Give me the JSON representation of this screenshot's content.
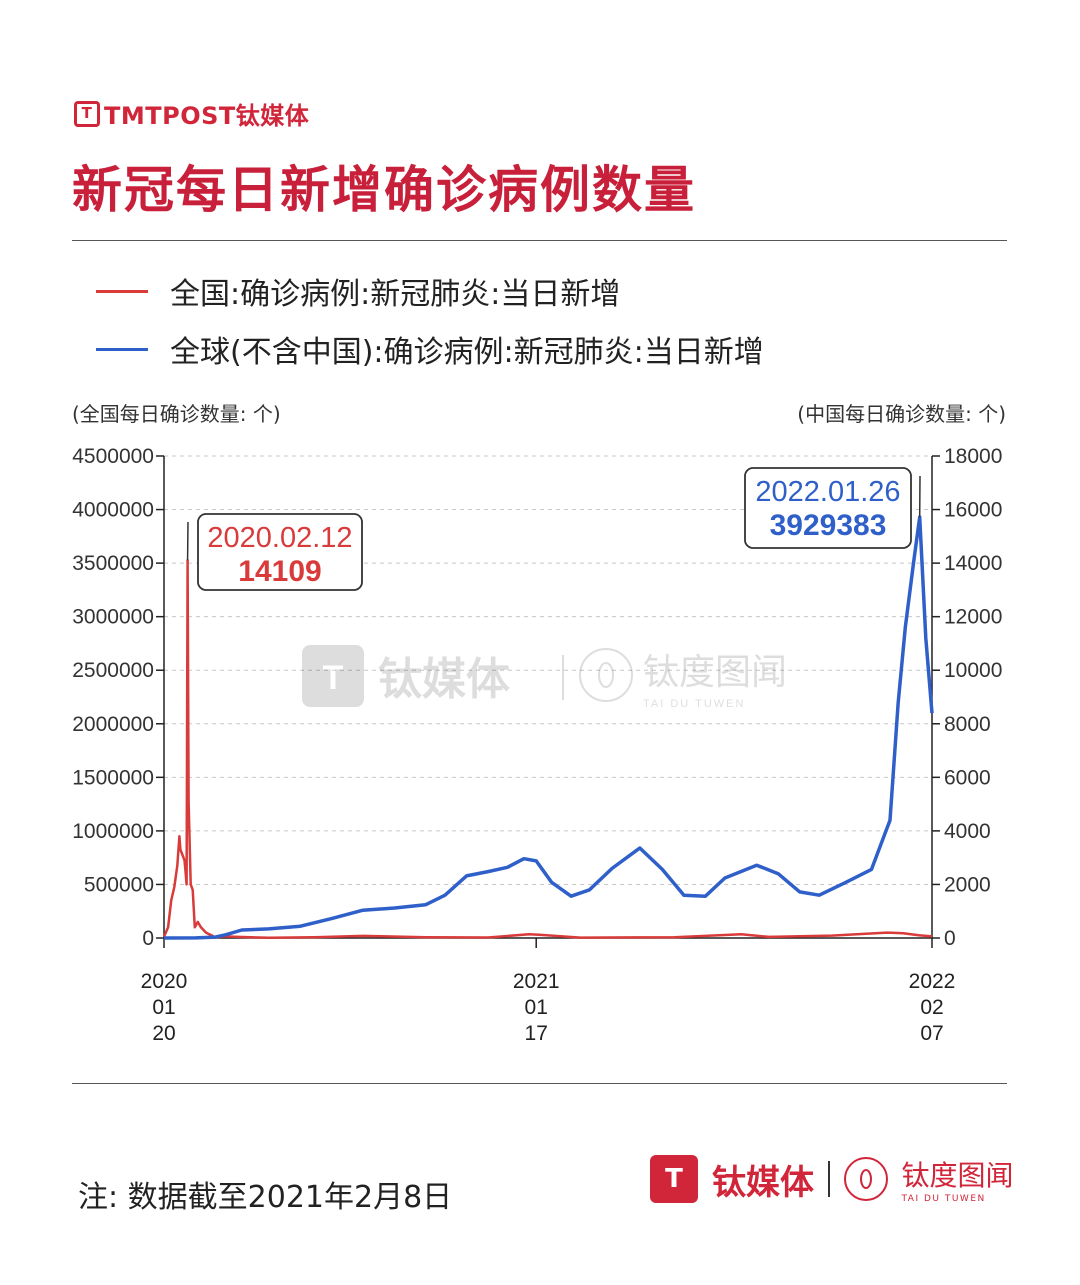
{
  "brand": {
    "logo_text": "TMTPOST钛媒体",
    "mark": "T"
  },
  "title": "新冠每日新增确诊病例数量",
  "legend": [
    {
      "label": "全国:确诊病例:新冠肺炎:当日新增",
      "color": "#d93a3a"
    },
    {
      "label": "全球(不含中国):确诊病例:新冠肺炎:当日新增",
      "color": "#2f5fc9"
    }
  ],
  "axis_units": {
    "left": "(全国每日确诊数量: 个)",
    "right": "(中国每日确诊数量: 个)"
  },
  "watermark": {
    "name": "钛媒体",
    "sub": "钛度图闻",
    "sub_en": "TAI DU TUWEN"
  },
  "footnote": "注: 数据截至2021年2月8日",
  "footer": {
    "name": "钛媒体",
    "sub": "钛度图闻",
    "sub_en": "TAI DU TUWEN",
    "badge": "T"
  },
  "chart_data": {
    "type": "line",
    "x_date_range": [
      "2020-01-20",
      "2022-02-07"
    ],
    "x_ticks": [
      {
        "date": "2020-01-20",
        "label": [
          "2020",
          "01",
          "20"
        ]
      },
      {
        "date": "2021-01-17",
        "label": [
          "2021",
          "01",
          "17"
        ]
      },
      {
        "date": "2022-02-07",
        "label": [
          "2022",
          "02",
          "07"
        ]
      }
    ],
    "y_left": {
      "ticks": [
        0,
        500000,
        1000000,
        1500000,
        2000000,
        2500000,
        3000000,
        3500000,
        4000000,
        4500000
      ],
      "lim": [
        0,
        4500000
      ]
    },
    "y_right": {
      "ticks": [
        0,
        2000,
        4000,
        6000,
        8000,
        10000,
        12000,
        14000,
        16000,
        18000
      ],
      "lim": [
        0,
        18000
      ]
    },
    "grid": true,
    "series": [
      {
        "name": "全国:确诊病例:新冠肺炎:当日新增",
        "axis": "right",
        "color": "#d93a3a",
        "points": [
          [
            "2020-01-20",
            50
          ],
          [
            "2020-01-24",
            400
          ],
          [
            "2020-01-27",
            1400
          ],
          [
            "2020-01-30",
            1900
          ],
          [
            "2020-02-02",
            2700
          ],
          [
            "2020-02-04",
            3800
          ],
          [
            "2020-02-05",
            3300
          ],
          [
            "2020-02-07",
            3100
          ],
          [
            "2020-02-09",
            2900
          ],
          [
            "2020-02-10",
            2500
          ],
          [
            "2020-02-11",
            2000
          ],
          [
            "2020-02-12",
            14109
          ],
          [
            "2020-02-13",
            5100
          ],
          [
            "2020-02-15",
            2000
          ],
          [
            "2020-02-17",
            1800
          ],
          [
            "2020-02-19",
            400
          ],
          [
            "2020-02-22",
            600
          ],
          [
            "2020-02-25",
            400
          ],
          [
            "2020-03-01",
            200
          ],
          [
            "2020-03-10",
            30
          ],
          [
            "2020-03-20",
            60
          ],
          [
            "2020-04-01",
            40
          ],
          [
            "2020-05-01",
            10
          ],
          [
            "2020-06-15",
            30
          ],
          [
            "2020-08-01",
            80
          ],
          [
            "2020-10-01",
            30
          ],
          [
            "2020-12-01",
            20
          ],
          [
            "2021-01-10",
            140
          ],
          [
            "2021-01-20",
            120
          ],
          [
            "2021-03-01",
            15
          ],
          [
            "2021-06-01",
            30
          ],
          [
            "2021-08-05",
            140
          ],
          [
            "2021-09-01",
            40
          ],
          [
            "2021-11-01",
            90
          ],
          [
            "2021-12-25",
            200
          ],
          [
            "2022-01-10",
            180
          ],
          [
            "2022-01-25",
            100
          ],
          [
            "2022-02-07",
            60
          ]
        ]
      },
      {
        "name": "全球(不含中国):确诊病例:新冠肺炎:当日新增",
        "axis": "left",
        "color": "#2f5fc9",
        "points": [
          [
            "2020-01-20",
            0
          ],
          [
            "2020-02-20",
            1000
          ],
          [
            "2020-03-10",
            8000
          ],
          [
            "2020-03-20",
            30000
          ],
          [
            "2020-04-05",
            75000
          ],
          [
            "2020-05-01",
            85000
          ],
          [
            "2020-06-01",
            110000
          ],
          [
            "2020-07-01",
            180000
          ],
          [
            "2020-08-01",
            260000
          ],
          [
            "2020-09-01",
            280000
          ],
          [
            "2020-10-01",
            310000
          ],
          [
            "2020-10-20",
            400000
          ],
          [
            "2020-11-10",
            580000
          ],
          [
            "2020-12-01",
            620000
          ],
          [
            "2020-12-20",
            660000
          ],
          [
            "2021-01-05",
            740000
          ],
          [
            "2021-01-17",
            720000
          ],
          [
            "2021-02-01",
            520000
          ],
          [
            "2021-02-20",
            390000
          ],
          [
            "2021-03-10",
            450000
          ],
          [
            "2021-04-01",
            650000
          ],
          [
            "2021-04-28",
            840000
          ],
          [
            "2021-05-20",
            640000
          ],
          [
            "2021-06-10",
            400000
          ],
          [
            "2021-07-01",
            390000
          ],
          [
            "2021-07-20",
            560000
          ],
          [
            "2021-08-20",
            680000
          ],
          [
            "2021-09-10",
            600000
          ],
          [
            "2021-10-01",
            430000
          ],
          [
            "2021-10-20",
            400000
          ],
          [
            "2021-11-15",
            520000
          ],
          [
            "2021-12-10",
            640000
          ],
          [
            "2021-12-28",
            1100000
          ],
          [
            "2022-01-05",
            2200000
          ],
          [
            "2022-01-12",
            2900000
          ],
          [
            "2022-01-20",
            3500000
          ],
          [
            "2022-01-26",
            3929383
          ],
          [
            "2022-02-01",
            2800000
          ],
          [
            "2022-02-07",
            2100000
          ]
        ]
      }
    ],
    "callouts": [
      {
        "series": 0,
        "date": "2020.02.12",
        "value": "14109"
      },
      {
        "series": 1,
        "date": "2022.01.26",
        "value": "3929383"
      }
    ]
  }
}
